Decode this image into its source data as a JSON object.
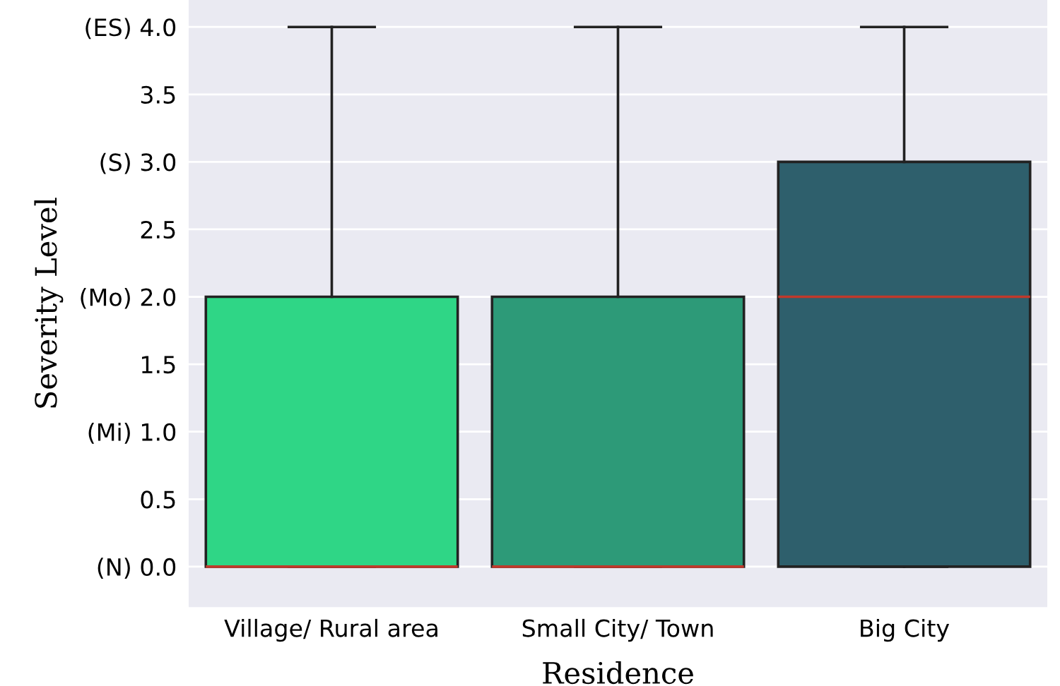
{
  "chart_data": {
    "type": "box",
    "xlabel": "Residence",
    "ylabel": "Severity Level",
    "categories": [
      "Village/ Rural area",
      "Small City/ Town",
      "Big City"
    ],
    "boxes": [
      {
        "low": 0,
        "q1": 0,
        "median": 0,
        "q3": 2,
        "high": 4
      },
      {
        "low": 0,
        "q1": 0,
        "median": 0,
        "q3": 2,
        "high": 4
      },
      {
        "low": 0,
        "q1": 0,
        "median": 2,
        "q3": 3,
        "high": 4
      }
    ],
    "colors": [
      "#2fd686",
      "#2d9a78",
      "#2e5f6c"
    ],
    "ylim": [
      -0.3,
      4.2
    ],
    "yticks": [
      {
        "value": 0,
        "label": "(N) 0.0"
      },
      0.5,
      {
        "value": 1,
        "label": "(Mi) 1.0"
      },
      1.5,
      {
        "value": 2,
        "label": "(Mo) 2.0"
      },
      2.5,
      {
        "value": 3,
        "label": "(S) 3.0"
      },
      3.5,
      {
        "value": 4,
        "label": "(ES) 4.0"
      }
    ],
    "grid": "y"
  }
}
